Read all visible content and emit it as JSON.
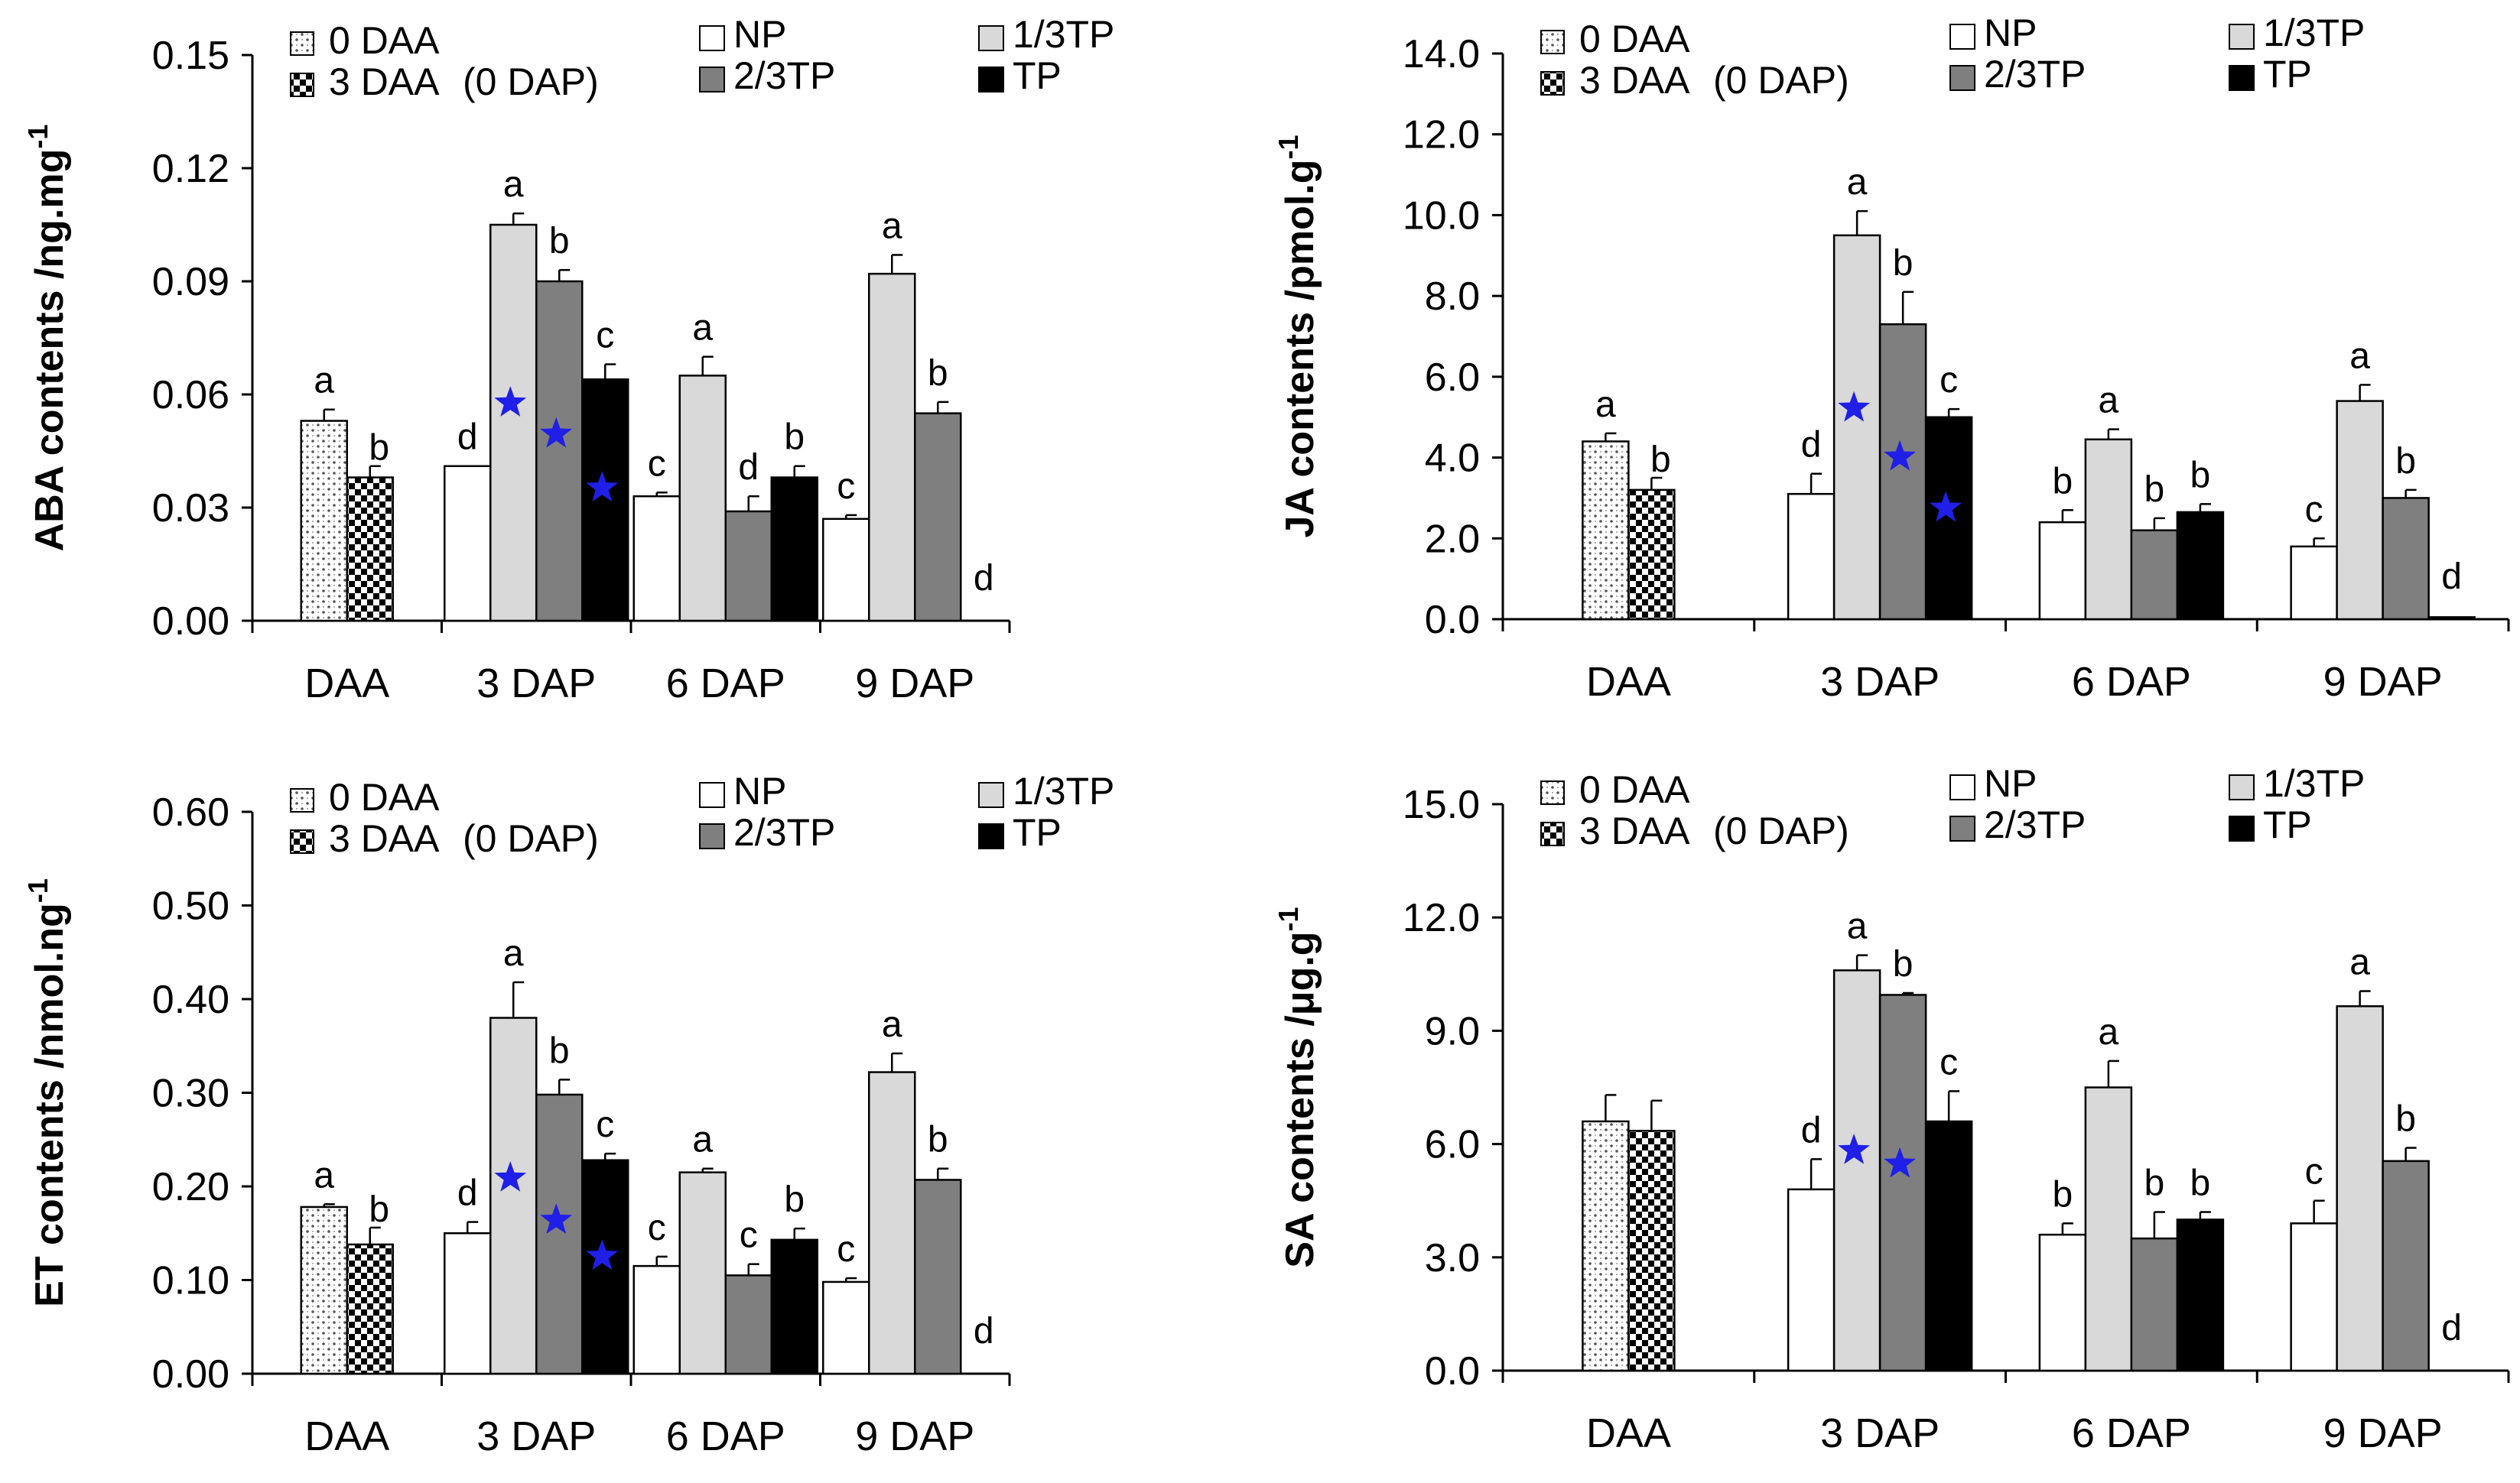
{
  "chart_data": [
    {
      "type": "bar",
      "ylabel": "ABA contents /ng.mg",
      "ylabel_sup": "-1",
      "ylim": [
        0,
        0.15
      ],
      "yticks": [
        "0.00",
        "0.03",
        "0.06",
        "0.09",
        "0.12",
        "0.15"
      ],
      "groups": [
        {
          "label": "DAA",
          "bars": [
            {
              "series": "0 DAA",
              "value": 0.053,
              "err": 0.003,
              "sig": "a",
              "star": false
            },
            {
              "series": "3 DAA (0 DAP)",
              "value": 0.038,
              "err": 0.003,
              "sig": "b",
              "star": false
            }
          ]
        },
        {
          "label": "3 DAP",
          "bars": [
            {
              "series": "NP",
              "value": 0.041,
              "err": 0.0,
              "sig": "d",
              "star": false
            },
            {
              "series": "1/3TP",
              "value": 0.105,
              "err": 0.003,
              "sig": "a",
              "star": true
            },
            {
              "series": "2/3TP",
              "value": 0.09,
              "err": 0.003,
              "sig": "b",
              "star": true
            },
            {
              "series": "TP",
              "value": 0.064,
              "err": 0.004,
              "sig": "c",
              "star": true
            }
          ]
        },
        {
          "label": "6 DAP",
          "bars": [
            {
              "series": "NP",
              "value": 0.033,
              "err": 0.001,
              "sig": "c",
              "star": false
            },
            {
              "series": "1/3TP",
              "value": 0.065,
              "err": 0.005,
              "sig": "a",
              "star": false
            },
            {
              "series": "2/3TP",
              "value": 0.029,
              "err": 0.004,
              "sig": "d",
              "star": false
            },
            {
              "series": "TP",
              "value": 0.038,
              "err": 0.003,
              "sig": "b",
              "star": false
            }
          ]
        },
        {
          "label": "9 DAP",
          "bars": [
            {
              "series": "NP",
              "value": 0.027,
              "err": 0.001,
              "sig": "c",
              "star": false
            },
            {
              "series": "1/3TP",
              "value": 0.092,
              "err": 0.005,
              "sig": "a",
              "star": false
            },
            {
              "series": "2/3TP",
              "value": 0.055,
              "err": 0.003,
              "sig": "b",
              "star": false
            },
            {
              "series": "TP",
              "value": 0.0,
              "err": 0.0,
              "sig": "d",
              "star": false
            }
          ]
        }
      ]
    },
    {
      "type": "bar",
      "ylabel": "JA contents /pmol.g",
      "ylabel_sup": "-1",
      "ylim": [
        0,
        14
      ],
      "yticks": [
        "0.0",
        "2.0",
        "4.0",
        "6.0",
        "8.0",
        "10.0",
        "12.0",
        "14.0"
      ],
      "groups": [
        {
          "label": "DAA",
          "bars": [
            {
              "series": "0 DAA",
              "value": 4.4,
              "err": 0.2,
              "sig": "a",
              "star": false
            },
            {
              "series": "3 DAA (0 DAP)",
              "value": 3.2,
              "err": 0.3,
              "sig": "b",
              "star": false
            }
          ]
        },
        {
          "label": "3 DAP",
          "bars": [
            {
              "series": "NP",
              "value": 3.1,
              "err": 0.5,
              "sig": "d",
              "star": false
            },
            {
              "series": "1/3TP",
              "value": 9.5,
              "err": 0.6,
              "sig": "a",
              "star": true
            },
            {
              "series": "2/3TP",
              "value": 7.3,
              "err": 0.8,
              "sig": "b",
              "star": true
            },
            {
              "series": "TP",
              "value": 5.0,
              "err": 0.2,
              "sig": "c",
              "star": true
            }
          ]
        },
        {
          "label": "6 DAP",
          "bars": [
            {
              "series": "NP",
              "value": 2.4,
              "err": 0.3,
              "sig": "b",
              "star": false
            },
            {
              "series": "1/3TP",
              "value": 4.45,
              "err": 0.25,
              "sig": "a",
              "star": false
            },
            {
              "series": "2/3TP",
              "value": 2.2,
              "err": 0.3,
              "sig": "b",
              "star": false
            },
            {
              "series": "TP",
              "value": 2.65,
              "err": 0.2,
              "sig": "b",
              "star": false
            }
          ]
        },
        {
          "label": "9 DAP",
          "bars": [
            {
              "series": "NP",
              "value": 1.8,
              "err": 0.2,
              "sig": "c",
              "star": false
            },
            {
              "series": "1/3TP",
              "value": 5.4,
              "err": 0.4,
              "sig": "a",
              "star": false
            },
            {
              "series": "2/3TP",
              "value": 3.0,
              "err": 0.2,
              "sig": "b",
              "star": false
            },
            {
              "series": "TP",
              "value": 0.05,
              "err": 0.0,
              "sig": "d",
              "star": false
            }
          ]
        }
      ]
    },
    {
      "type": "bar",
      "ylabel": "ET contents /nmol.ng",
      "ylabel_sup": "-1",
      "ylim": [
        0,
        0.6
      ],
      "yticks": [
        "0.00",
        "0.10",
        "0.20",
        "0.30",
        "0.40",
        "0.50",
        "0.60"
      ],
      "groups": [
        {
          "label": "DAA",
          "bars": [
            {
              "series": "0 DAA",
              "value": 0.178,
              "err": 0.003,
              "sig": "a",
              "star": false
            },
            {
              "series": "3 DAA (0 DAP)",
              "value": 0.138,
              "err": 0.018,
              "sig": "b",
              "star": false
            }
          ]
        },
        {
          "label": "3 DAP",
          "bars": [
            {
              "series": "NP",
              "value": 0.15,
              "err": 0.012,
              "sig": "d",
              "star": false
            },
            {
              "series": "1/3TP",
              "value": 0.38,
              "err": 0.038,
              "sig": "a",
              "star": true
            },
            {
              "series": "2/3TP",
              "value": 0.298,
              "err": 0.016,
              "sig": "b",
              "star": true
            },
            {
              "series": "TP",
              "value": 0.228,
              "err": 0.007,
              "sig": "c",
              "star": true
            }
          ]
        },
        {
          "label": "6 DAP",
          "bars": [
            {
              "series": "NP",
              "value": 0.115,
              "err": 0.01,
              "sig": "c",
              "star": false
            },
            {
              "series": "1/3TP",
              "value": 0.215,
              "err": 0.004,
              "sig": "a",
              "star": false
            },
            {
              "series": "2/3TP",
              "value": 0.105,
              "err": 0.012,
              "sig": "c",
              "star": false
            },
            {
              "series": "TP",
              "value": 0.143,
              "err": 0.012,
              "sig": "b",
              "star": false
            }
          ]
        },
        {
          "label": "9 DAP",
          "bars": [
            {
              "series": "NP",
              "value": 0.098,
              "err": 0.004,
              "sig": "c",
              "star": false
            },
            {
              "series": "1/3TP",
              "value": 0.322,
              "err": 0.02,
              "sig": "a",
              "star": false
            },
            {
              "series": "2/3TP",
              "value": 0.207,
              "err": 0.012,
              "sig": "b",
              "star": false
            },
            {
              "series": "TP",
              "value": 0.0,
              "err": 0.0,
              "sig": "d",
              "star": false
            }
          ]
        }
      ]
    },
    {
      "type": "bar",
      "ylabel": "SA contents /μg.g",
      "ylabel_sup": "-1",
      "ylim": [
        0,
        15
      ],
      "yticks": [
        "0.0",
        "3.0",
        "6.0",
        "9.0",
        "12.0",
        "15.0"
      ],
      "groups": [
        {
          "label": "DAA",
          "bars": [
            {
              "series": "0 DAA",
              "value": 6.6,
              "err": 0.7,
              "sig": "",
              "star": false
            },
            {
              "series": "3 DAA (0 DAP)",
              "value": 6.35,
              "err": 0.8,
              "sig": "",
              "star": false
            }
          ]
        },
        {
          "label": "3 DAP",
          "bars": [
            {
              "series": "NP",
              "value": 4.8,
              "err": 0.8,
              "sig": "d",
              "star": false
            },
            {
              "series": "1/3TP",
              "value": 10.6,
              "err": 0.4,
              "sig": "a",
              "star": true
            },
            {
              "series": "2/3TP",
              "value": 9.95,
              "err": 0.05,
              "sig": "b",
              "star": true
            },
            {
              "series": "TP",
              "value": 6.6,
              "err": 0.8,
              "sig": "c",
              "star": false
            }
          ]
        },
        {
          "label": "6 DAP",
          "bars": [
            {
              "series": "NP",
              "value": 3.6,
              "err": 0.3,
              "sig": "b",
              "star": false
            },
            {
              "series": "1/3TP",
              "value": 7.5,
              "err": 0.7,
              "sig": "a",
              "star": false
            },
            {
              "series": "2/3TP",
              "value": 3.5,
              "err": 0.7,
              "sig": "b",
              "star": false
            },
            {
              "series": "TP",
              "value": 4.0,
              "err": 0.2,
              "sig": "b",
              "star": false
            }
          ]
        },
        {
          "label": "9 DAP",
          "bars": [
            {
              "series": "NP",
              "value": 3.9,
              "err": 0.6,
              "sig": "c",
              "star": false
            },
            {
              "series": "1/3TP",
              "value": 9.65,
              "err": 0.4,
              "sig": "a",
              "star": false
            },
            {
              "series": "2/3TP",
              "value": 5.55,
              "err": 0.35,
              "sig": "b",
              "star": false
            },
            {
              "series": "TP",
              "value": 0.0,
              "err": 0.0,
              "sig": "d",
              "star": false
            }
          ]
        }
      ]
    }
  ],
  "legend": {
    "daa": [
      "0 DAA",
      "3 DAA",
      "(0 DAP)"
    ],
    "treatments": [
      "NP",
      "1/3TP",
      "2/3TP",
      "TP"
    ]
  },
  "colors": {
    "NP": "#ffffff",
    "1/3TP": "#d9d9d9",
    "2/3TP": "#7f7f7f",
    "TP": "#000000",
    "star": "#1f1fe8"
  }
}
